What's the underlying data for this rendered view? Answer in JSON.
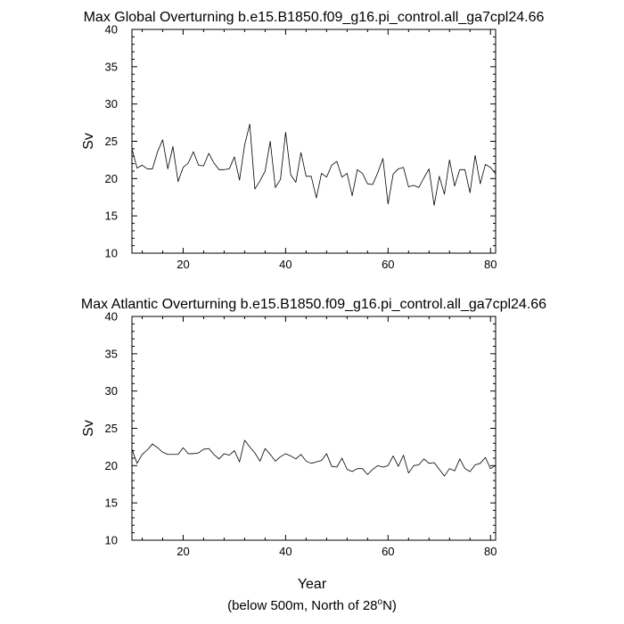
{
  "figure": {
    "xlabel": "Year",
    "footnote": "(below 500m, North of 28",
    "footnote_super": "o",
    "footnote_tail": "N)"
  },
  "chart_data": [
    {
      "type": "line",
      "title": "Max Global Overturning b.e15.B1850.f09_g16.pi_control.all_ga7cpl24.66",
      "xlabel": "",
      "ylabel": "Sv",
      "xlim": [
        10,
        81
      ],
      "ylim": [
        10,
        40
      ],
      "xticks": [
        20,
        40,
        60,
        80
      ],
      "yticks": [
        10,
        15,
        20,
        25,
        30,
        35,
        40
      ],
      "grid": false,
      "series": [
        {
          "color": "#000000",
          "x": [
            10,
            11,
            12,
            13,
            14,
            15,
            16,
            17,
            18,
            19,
            20,
            21,
            22,
            23,
            24,
            25,
            26,
            27,
            28,
            29,
            30,
            31,
            32,
            33,
            34,
            35,
            36,
            37,
            38,
            39,
            40,
            41,
            42,
            43,
            44,
            45,
            46,
            47,
            48,
            49,
            50,
            51,
            52,
            53,
            54,
            55,
            56,
            57,
            58,
            59,
            60,
            61,
            62,
            63,
            64,
            65,
            66,
            67,
            68,
            69,
            70,
            71,
            72,
            73,
            74,
            75,
            76,
            77,
            78,
            79,
            80,
            81
          ],
          "y": [
            24.0,
            21.4,
            21.8,
            21.3,
            21.3,
            23.6,
            25.2,
            21.3,
            24.3,
            19.6,
            21.5,
            22.1,
            23.6,
            21.8,
            21.7,
            23.4,
            22.1,
            21.2,
            21.2,
            21.3,
            22.9,
            19.8,
            24.5,
            27.3,
            18.6,
            19.7,
            21.0,
            25.0,
            18.8,
            19.9,
            26.2,
            20.5,
            19.5,
            23.5,
            20.3,
            20.3,
            17.4,
            20.7,
            20.2,
            21.8,
            22.3,
            20.2,
            20.7,
            17.7,
            21.2,
            20.7,
            19.3,
            19.2,
            20.8,
            22.7,
            16.6,
            20.6,
            21.3,
            21.5,
            18.9,
            19.1,
            18.8,
            20.1,
            21.3,
            16.4,
            20.3,
            17.9,
            22.5,
            19.0,
            21.2,
            21.2,
            18.1,
            23.1,
            19.3,
            21.9,
            21.5,
            20.6
          ]
        }
      ]
    },
    {
      "type": "line",
      "title": "Max Atlantic Overturning b.e15.B1850.f09_g16.pi_control.all_ga7cpl24.66",
      "xlabel": "Year",
      "ylabel": "Sv",
      "xlim": [
        10,
        81
      ],
      "ylim": [
        10,
        40
      ],
      "xticks": [
        20,
        40,
        60,
        80
      ],
      "yticks": [
        10,
        15,
        20,
        25,
        30,
        35,
        40
      ],
      "grid": false,
      "series": [
        {
          "color": "#000000",
          "x": [
            10,
            11,
            12,
            13,
            14,
            15,
            16,
            17,
            18,
            19,
            20,
            21,
            22,
            23,
            24,
            25,
            26,
            27,
            28,
            29,
            30,
            31,
            32,
            33,
            34,
            35,
            36,
            37,
            38,
            39,
            40,
            41,
            42,
            43,
            44,
            45,
            46,
            47,
            48,
            49,
            50,
            51,
            52,
            53,
            54,
            55,
            56,
            57,
            58,
            59,
            60,
            61,
            62,
            63,
            64,
            65,
            66,
            67,
            68,
            69,
            70,
            71,
            72,
            73,
            74,
            75,
            76,
            77,
            78,
            79,
            80,
            81
          ],
          "y": [
            22.2,
            20.3,
            21.5,
            22.1,
            22.9,
            22.4,
            21.8,
            21.5,
            21.5,
            21.5,
            22.4,
            21.6,
            21.6,
            21.7,
            22.2,
            22.3,
            21.5,
            20.9,
            21.6,
            21.4,
            22.0,
            20.5,
            23.4,
            22.5,
            21.7,
            20.6,
            22.3,
            21.5,
            20.6,
            21.2,
            21.6,
            21.3,
            20.9,
            21.5,
            20.6,
            20.3,
            20.5,
            20.7,
            21.6,
            19.9,
            19.8,
            21.0,
            19.5,
            19.2,
            19.6,
            19.6,
            18.8,
            19.5,
            20.0,
            19.8,
            20.0,
            21.3,
            19.9,
            21.4,
            19.0,
            20.0,
            20.1,
            20.9,
            20.3,
            20.4,
            19.5,
            18.6,
            19.6,
            19.3,
            20.9,
            19.6,
            19.2,
            20.1,
            20.3,
            21.1,
            19.6,
            20.0
          ]
        }
      ]
    }
  ]
}
